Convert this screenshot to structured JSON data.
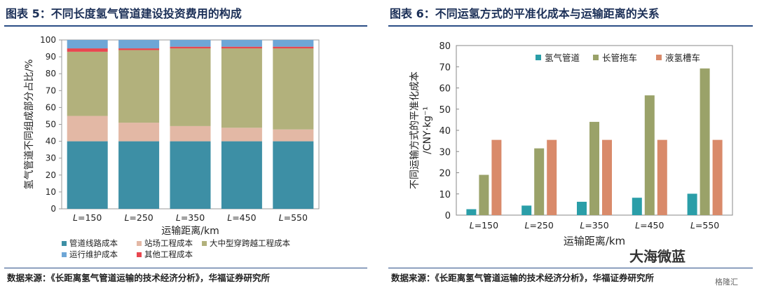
{
  "left": {
    "title": "图表 5：不同长度氢气管道建设投资费用的构成",
    "source": "数据来源：《长距离氢气管道运输的技术经济分析》，华福证券研究所"
  },
  "right": {
    "title": "图表 6：不同运氢方式的平准化成本与运输距离的关系",
    "source": "数据来源：《长距离氢气管道运输的技术经济分析》，华福证券研究所"
  },
  "watermark": {
    "text": "大海微蓝",
    "sub": "格隆汇"
  },
  "colors": {
    "pipeline_teal": "#3d8fa5",
    "station_pink": "#e3b8a5",
    "crossing_olive": "#b2b17c",
    "maintenance_blue": "#6ea6d6",
    "other_red": "#e8464f",
    "trailer_olive": "#9aa269",
    "liquid_orange": "#d98a6a",
    "pipe_cyan": "#2a9ea8",
    "title_navy": "#1b2f57",
    "rule_blue": "#2b4e86"
  },
  "chart_data": [
    {
      "type": "bar",
      "stacked": true,
      "title": "",
      "xlabel": "运输距离/km",
      "ylabel": "氢气管道不同组成部分占比/%",
      "categories": [
        "L=150",
        "L=250",
        "L=350",
        "L=450",
        "L=550"
      ],
      "ylim": [
        0,
        100
      ],
      "yticks": [
        0,
        10,
        20,
        30,
        40,
        50,
        60,
        70,
        80,
        90,
        100
      ],
      "grid": false,
      "legend_position": "bottom",
      "series": [
        {
          "name": "管道线路成本",
          "color": "#3d8fa5",
          "values": [
            40,
            40,
            40,
            40,
            40
          ]
        },
        {
          "name": "站场工程成本",
          "color": "#e3b8a5",
          "values": [
            15,
            11,
            9,
            8,
            7
          ]
        },
        {
          "name": "大中型穿跨越工程成本",
          "color": "#b2b17c",
          "values": [
            38,
            43,
            46,
            47,
            48
          ]
        },
        {
          "name": "其他工程成本",
          "color": "#e8464f",
          "values": [
            2,
            1,
            1,
            1,
            1
          ]
        },
        {
          "name": "运行维护成本",
          "color": "#6ea6d6",
          "values": [
            5,
            5,
            4,
            4,
            4
          ]
        }
      ]
    },
    {
      "type": "bar",
      "stacked": false,
      "title": "",
      "xlabel": "运输距离/km",
      "ylabel": "不同运输方式的平准化成本/CNY·kg⁻¹",
      "categories": [
        "L=150",
        "L=250",
        "L=350",
        "L=450",
        "L=550"
      ],
      "ylim": [
        0,
        80
      ],
      "yticks": [
        0,
        10,
        20,
        30,
        40,
        50,
        60,
        70,
        80
      ],
      "grid": false,
      "legend_position": "top",
      "series": [
        {
          "name": "氢气管道",
          "color": "#2a9ea8",
          "values": [
            2.8,
            4.5,
            6.3,
            8.2,
            10.1
          ]
        },
        {
          "name": "长管拖车",
          "color": "#9aa269",
          "values": [
            19.0,
            31.5,
            44.0,
            56.5,
            69.2
          ]
        },
        {
          "name": "液氢槽车",
          "color": "#d98a6a",
          "values": [
            35.5,
            35.5,
            35.5,
            35.5,
            35.5
          ]
        }
      ]
    }
  ]
}
